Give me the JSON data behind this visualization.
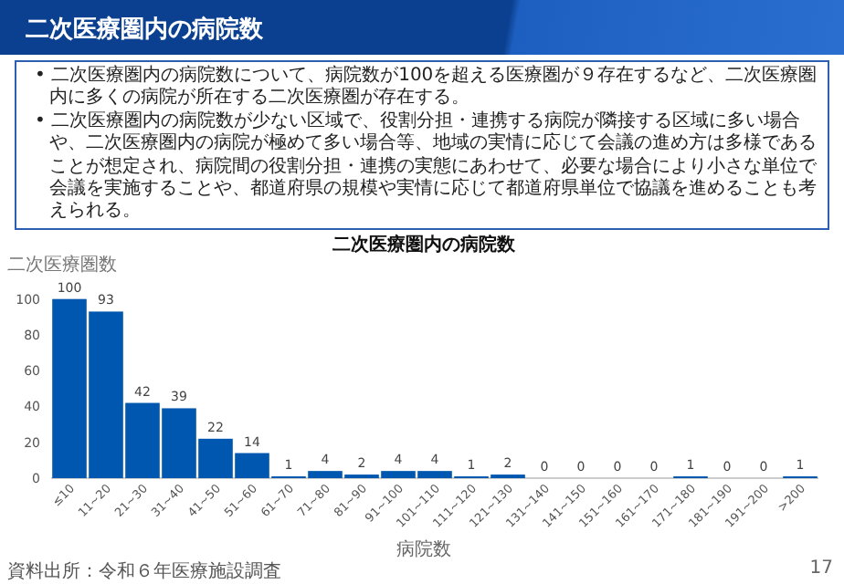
{
  "chart_data": {
    "type": "bar",
    "title": "二次医療圏内の病院数",
    "ylabel": "二次医療圏数",
    "xlabel": "病院数",
    "annotations": [
      "二次医療圏内の病院数",
      "• 二次医療圏内の病院数について、病院数が100を超える医療圏が９存在するなど、二次医療圏内に多くの病院が所在する二次医療圏が存在する。",
      "• 二次医療圏内の病院数が少ない区域で、役割分担・連携する病院が隣接する区域に多い場合や、二次医療圏内の病院が極めて多い場合等、地域の実情に応じて会議の進め方は多様であることが想定され、病院間の役割分担・連携の実態にあわせて、必要な場合により小さな単位で会議を実施することや、都道府県の規模や実情に応じて都道府県単位で協議を進めることも考えられる。",
      "資料出所：令和６年医療施設調査",
      "17"
    ],
    "categories": [
      "≤10",
      "11~20",
      "21~30",
      "31~40",
      "41~50",
      "51~60",
      "61~70",
      "71~80",
      "81~90",
      "91~100",
      "101~110",
      "111~120",
      "121~130",
      "131~140",
      "141~150",
      "151~160",
      "161~170",
      "171~180",
      "181~190",
      "191~200",
      ">200"
    ],
    "values": [
      100,
      93,
      42,
      39,
      22,
      14,
      1,
      4,
      2,
      4,
      4,
      1,
      2,
      0,
      0,
      0,
      0,
      1,
      0,
      0,
      1
    ],
    "color": "#0057b0",
    "ylim": [
      0,
      100
    ],
    "yticks": [
      0,
      20,
      40,
      60,
      80,
      100
    ],
    "data_labels": true
  }
}
